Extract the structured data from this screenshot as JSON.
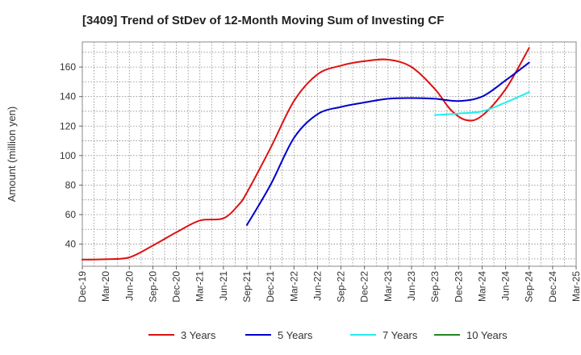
{
  "chart_data": {
    "type": "line",
    "title": "[3409]  Trend of StDev of 12-Month Moving Sum of Investing CF",
    "ylabel": "Amount (million yen)",
    "xlabel": "",
    "ylim": [
      25,
      177
    ],
    "yticks": [
      40,
      60,
      80,
      100,
      120,
      140,
      160
    ],
    "grid": true,
    "legend_position": "bottom",
    "categories": [
      "Dec-19",
      "Mar-20",
      "Jun-20",
      "Sep-20",
      "Dec-20",
      "Mar-21",
      "Jun-21",
      "Sep-21",
      "Dec-21",
      "Mar-22",
      "Jun-22",
      "Sep-22",
      "Dec-22",
      "Mar-23",
      "Jun-23",
      "Sep-23",
      "Dec-23",
      "Mar-24",
      "Jun-24",
      "Sep-24",
      "Dec-24",
      "Mar-25"
    ],
    "series": [
      {
        "name": "3 Years",
        "color": "#dd1111",
        "points": [
          [
            "Dec-19",
            29.5
          ],
          [
            "Mar-20",
            29.8
          ],
          [
            "Jun-20",
            31.0
          ],
          [
            "Sep-20",
            39.0
          ],
          [
            "Dec-20",
            48.0
          ],
          [
            "Mar-21",
            56.0
          ],
          [
            "Jun-21",
            57.5
          ],
          [
            "Aug-21",
            67.0
          ],
          [
            "Sep-21",
            75.0
          ],
          [
            "Dec-21",
            105.0
          ],
          [
            "Mar-22",
            137.0
          ],
          [
            "Jun-22",
            155.0
          ],
          [
            "Sep-22",
            161.0
          ],
          [
            "Dec-22",
            164.0
          ],
          [
            "Mar-23",
            165.0
          ],
          [
            "Jun-23",
            160.0
          ],
          [
            "Sep-23",
            145.0
          ],
          [
            "Nov-23",
            131.0
          ],
          [
            "Jan-24",
            124.0
          ],
          [
            "Mar-24",
            127.0
          ],
          [
            "Jun-24",
            145.0
          ],
          [
            "Sep-24",
            173.0
          ]
        ]
      },
      {
        "name": "5 Years",
        "color": "#0000cc",
        "points": [
          [
            "Sep-21",
            53.0
          ],
          [
            "Dec-21",
            80.0
          ],
          [
            "Mar-22",
            112.0
          ],
          [
            "Jun-22",
            128.0
          ],
          [
            "Sep-22",
            133.0
          ],
          [
            "Dec-22",
            136.0
          ],
          [
            "Mar-23",
            138.5
          ],
          [
            "Jun-23",
            139.0
          ],
          [
            "Sep-23",
            138.5
          ],
          [
            "Dec-23",
            137.0
          ],
          [
            "Mar-24",
            140.0
          ],
          [
            "Jun-24",
            151.0
          ],
          [
            "Sep-24",
            163.0
          ]
        ]
      },
      {
        "name": "7 Years",
        "color": "#22eeee",
        "points": [
          [
            "Sep-23",
            127.5
          ],
          [
            "Dec-23",
            128.5
          ],
          [
            "Mar-24",
            130.0
          ],
          [
            "Jun-24",
            136.0
          ],
          [
            "Sep-24",
            143.0
          ]
        ]
      },
      {
        "name": "10 Years",
        "color": "#228822",
        "points": []
      }
    ]
  }
}
